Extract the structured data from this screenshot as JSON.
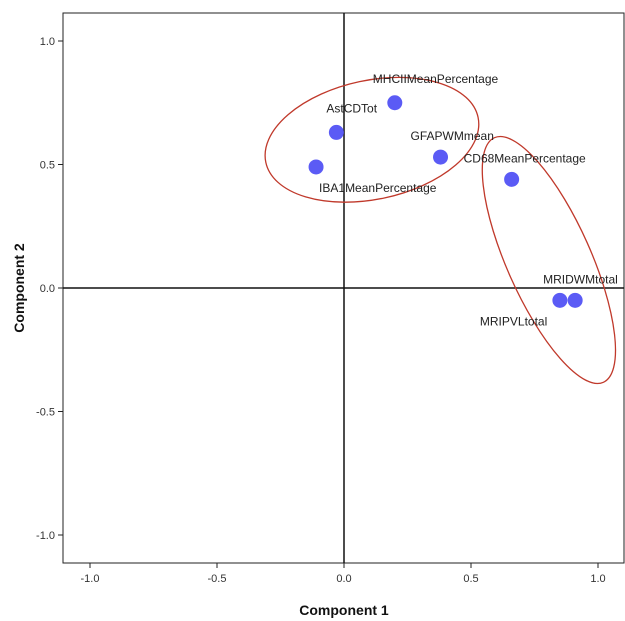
{
  "chart_data": {
    "type": "scatter",
    "title": "",
    "xlabel": "Component 1",
    "ylabel": "Component 2",
    "xlim": [
      -1.1,
      1.1
    ],
    "ylim": [
      -1.1,
      1.1
    ],
    "xticks": [
      "-1.0",
      "-0.5",
      "0.0",
      "0.5",
      "1.0"
    ],
    "yticks": [
      "1.0",
      "0.5",
      "0.0",
      "-0.5",
      "-1.0"
    ],
    "grid": false,
    "point_color": "#5b5bf5",
    "ellipse_color": "#c0392b",
    "reference_lines": [
      {
        "axis": "x",
        "value": 0
      },
      {
        "axis": "y",
        "value": 0
      }
    ],
    "points": [
      {
        "label": "MHCIIMeanPercentage",
        "x": 0.2,
        "y": 0.75
      },
      {
        "label": "AstCDTot",
        "x": -0.03,
        "y": 0.63
      },
      {
        "label": "IBA1MeanPercentage",
        "x": -0.11,
        "y": 0.49
      },
      {
        "label": "GFAPWMmean",
        "x": 0.38,
        "y": 0.53
      },
      {
        "label": "CD68MeanPercentage",
        "x": 0.66,
        "y": 0.44
      },
      {
        "label": "MRIDWMtotal",
        "x": 0.91,
        "y": -0.05
      },
      {
        "label": "MRIPVLtotal",
        "x": 0.85,
        "y": -0.05
      }
    ],
    "groups": [
      {
        "members": [
          "MHCIIMeanPercentage",
          "AstCDTot",
          "IBA1MeanPercentage",
          "GFAPWMmean"
        ]
      },
      {
        "members": [
          "CD68MeanPercentage",
          "MRIDWMtotal",
          "MRIPVLtotal"
        ]
      }
    ]
  }
}
